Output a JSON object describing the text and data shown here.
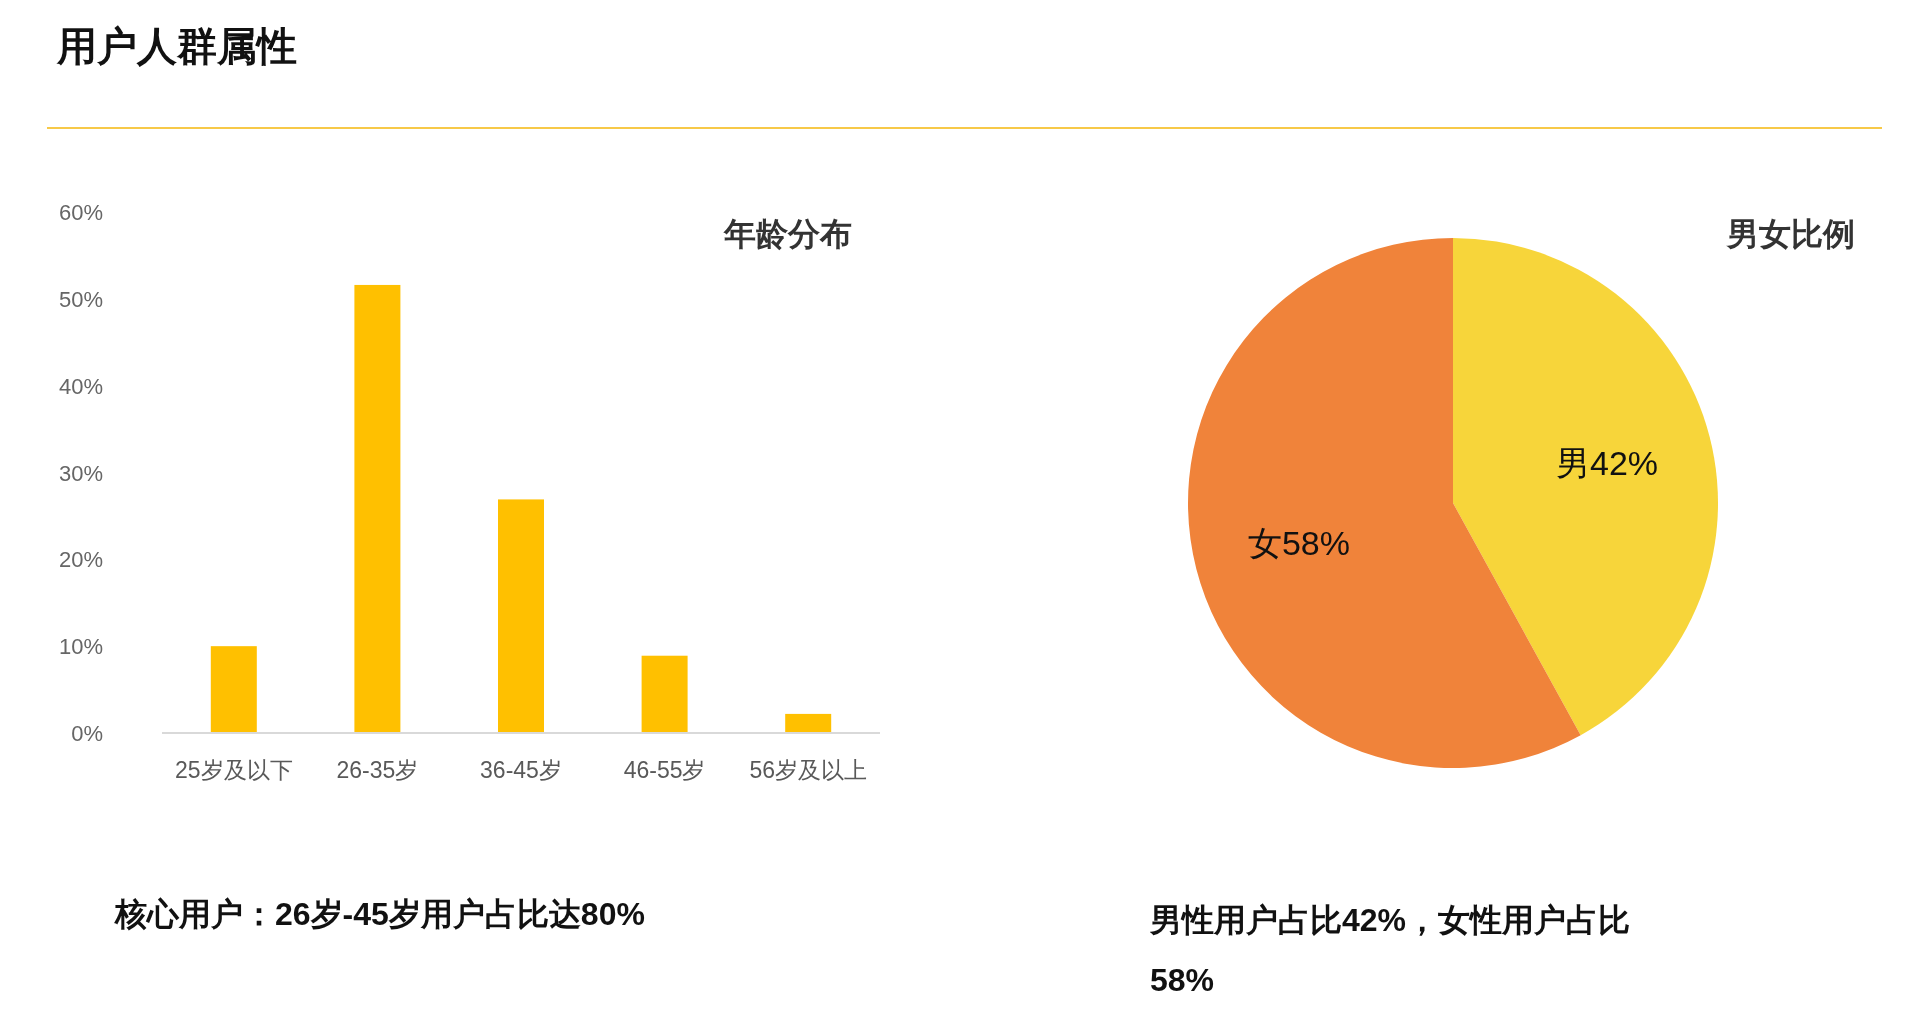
{
  "chart_data": [
    {
      "type": "bar",
      "title": "年龄分布",
      "annotations": [
        "用户人群属性",
        "核心用户：26岁-45岁用户占比达80%"
      ],
      "categories": [
        "25岁及以下",
        "26-35岁",
        "36-45岁",
        "46-55岁",
        "56岁及以上"
      ],
      "values": [
        10,
        51.6,
        26.9,
        8.9,
        2.2
      ],
      "color": "#ffc000",
      "ylim": [
        0,
        60
      ],
      "yticks": [
        {
          "value": 0,
          "label": "0%"
        },
        {
          "value": 10,
          "label": "10%"
        },
        {
          "value": 20,
          "label": "20%"
        },
        {
          "value": 30,
          "label": "30%"
        },
        {
          "value": 40,
          "label": "40%"
        },
        {
          "value": 50,
          "label": "50%"
        },
        {
          "value": 60,
          "label": "60%"
        }
      ],
      "grid": false
    },
    {
      "type": "pie",
      "title": "男女比例",
      "annotations": [
        "男性用户占比42%，女性用户占比58%"
      ],
      "categories": [
        "男",
        "女"
      ],
      "values": [
        42,
        58
      ],
      "colors": [
        "#f7d53a",
        "#f0833a"
      ],
      "value_labels": [
        "42%",
        "58%"
      ]
    }
  ]
}
